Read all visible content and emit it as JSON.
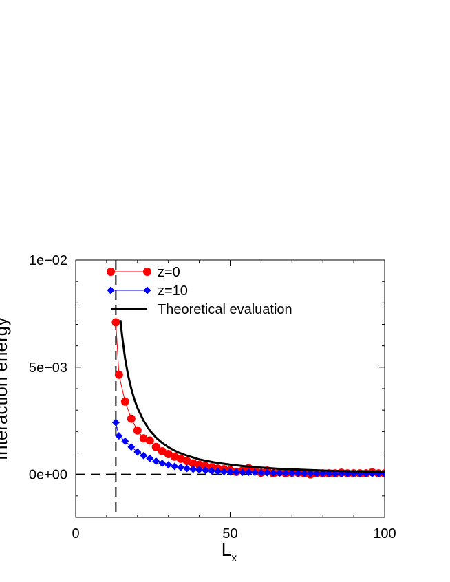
{
  "chart_data": {
    "type": "line",
    "title": "",
    "xlabel": "L",
    "xlabel_sub": "x",
    "ylabel": "Interaction energy",
    "xlim": [
      0,
      100
    ],
    "ylim": [
      -0.002,
      0.01
    ],
    "xticks": [
      0,
      50,
      100
    ],
    "xtick_labels": [
      "0",
      "50",
      "100"
    ],
    "yticks": [
      0,
      0.005,
      0.01
    ],
    "ytick_labels": [
      "0e+00",
      "5e−03",
      "1e−02"
    ],
    "grid": false,
    "legend_position": "top-left",
    "reference_lines": {
      "x": 13,
      "y": 0
    },
    "series": [
      {
        "name": "z=0",
        "marker": "circle",
        "color": "#ff0000",
        "x": [
          13,
          14,
          16,
          18,
          20,
          22,
          24,
          26,
          28,
          30,
          32,
          34,
          36,
          38,
          40,
          42,
          44,
          46,
          48,
          50,
          52,
          54,
          56,
          58,
          60,
          62,
          64,
          66,
          68,
          70,
          72,
          74,
          76,
          78,
          80,
          82,
          84,
          86,
          88,
          90,
          92,
          94,
          96,
          98,
          100
        ],
        "y": [
          0.0071,
          0.00465,
          0.0034,
          0.0026,
          0.00205,
          0.00168,
          0.00158,
          0.00128,
          0.00108,
          0.00095,
          0.00083,
          0.00073,
          0.00063,
          0.00052,
          0.00045,
          0.0004,
          0.00034,
          0.00028,
          0.00024,
          0.0002,
          0.00012,
          0.00018,
          0.0003,
          0.0002,
          8e-05,
          0.00018,
          5e-05,
          0.0001,
          5e-05,
          8e-05,
          8e-05,
          5e-05,
          0.0,
          5e-05,
          5e-05,
          5e-05,
          5e-05,
          8e-05,
          5e-05,
          5e-05,
          5e-05,
          5e-05,
          0.0001,
          5e-05,
          5e-05
        ]
      },
      {
        "name": "z=10",
        "marker": "diamond",
        "color": "#0000ff",
        "x": [
          13,
          14,
          16,
          18,
          20,
          22,
          24,
          26,
          28,
          30,
          32,
          34,
          36,
          38,
          40,
          42,
          44,
          46,
          48,
          50,
          52,
          54,
          56,
          58,
          60,
          62,
          64,
          66,
          68,
          70,
          72,
          74,
          76,
          78,
          80,
          82,
          84,
          86,
          88,
          90,
          92,
          94,
          96,
          98,
          100
        ],
        "y": [
          0.00242,
          0.0018,
          0.00155,
          0.00128,
          0.00105,
          0.00088,
          0.00075,
          0.00062,
          0.00052,
          0.00045,
          0.00038,
          0.00033,
          0.00028,
          0.00024,
          0.00022,
          0.00019,
          0.00017,
          0.00015,
          0.00013,
          0.00012,
          0.00011,
          0.0001,
          0.0001,
          9e-05,
          8e-05,
          8e-05,
          7e-05,
          7e-05,
          6e-05,
          6e-05,
          6e-05,
          5e-05,
          5e-05,
          5e-05,
          5e-05,
          5e-05,
          4e-05,
          4e-05,
          4e-05,
          4e-05,
          4e-05,
          4e-05,
          4e-05,
          4e-05,
          4e-05
        ]
      },
      {
        "name": "Theoretical evaluation",
        "marker": "none",
        "color": "#000000",
        "x": [
          14.5,
          15,
          16,
          17,
          18,
          19,
          20,
          22,
          24,
          26,
          28,
          30,
          33,
          36,
          40,
          45,
          50,
          55,
          60,
          65,
          70,
          75,
          80,
          85,
          90,
          95,
          100
        ],
        "y": [
          0.0072,
          0.0065,
          0.0054,
          0.0046,
          0.004,
          0.0035,
          0.0031,
          0.0025,
          0.00205,
          0.00172,
          0.00147,
          0.00127,
          0.00104,
          0.00088,
          0.0007,
          0.00056,
          0.00046,
          0.00038,
          0.00032,
          0.00027,
          0.00024,
          0.00021,
          0.00018,
          0.00016,
          0.00014,
          0.00013,
          0.00012
        ]
      }
    ]
  }
}
